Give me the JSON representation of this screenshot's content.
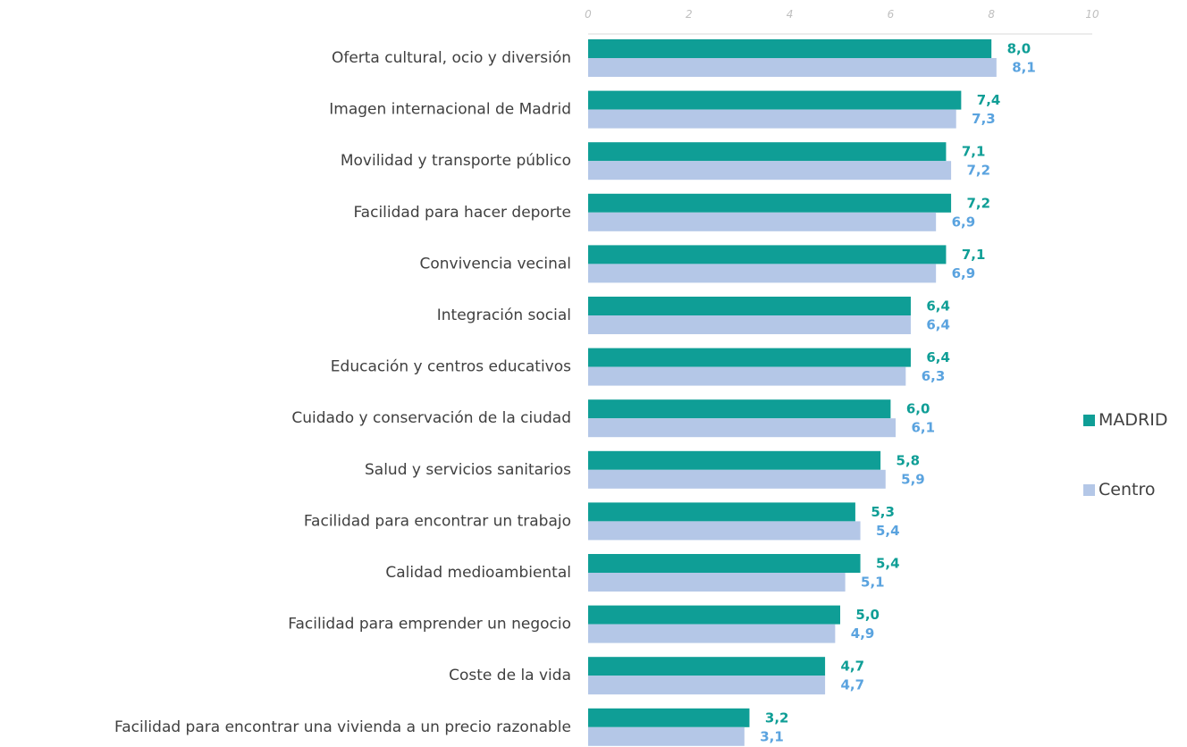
{
  "colors": {
    "madrid_bar": "#0f9e96",
    "centro_bar": "#b4c7e7",
    "madrid_text": "#0f9e96",
    "centro_text": "#5aa3df",
    "axis_line": "#d9d9d9"
  },
  "chart_data": {
    "type": "bar",
    "orientation": "horizontal",
    "title": "",
    "xlabel": "",
    "ylabel": "",
    "xlim": [
      0,
      10
    ],
    "x_ticks": [
      "0",
      "2",
      "4",
      "6",
      "8",
      "10"
    ],
    "x_axis_position": "top",
    "grid": false,
    "legend_position": "right",
    "categories": [
      "Oferta cultural, ocio y diversión",
      "Imagen internacional de Madrid",
      "Movilidad y transporte público",
      "Facilidad para hacer deporte",
      "Convivencia vecinal",
      "Integración social",
      "Educación y centros educativos",
      "Cuidado y conservación de la ciudad",
      "Salud y servicios sanitarios",
      "Facilidad para encontrar un trabajo",
      "Calidad medioambiental",
      "Facilidad para emprender un negocio",
      "Coste de la vida",
      "Facilidad para encontrar una vivienda a un precio razonable"
    ],
    "series": [
      {
        "name": "MADRID",
        "values": [
          8.0,
          7.4,
          7.1,
          7.2,
          7.1,
          6.4,
          6.4,
          6.0,
          5.8,
          5.3,
          5.4,
          5.0,
          4.7,
          3.2
        ],
        "labels": [
          "8,0",
          "7,4",
          "7,1",
          "7,2",
          "7,1",
          "6,4",
          "6,4",
          "6,0",
          "5,8",
          "5,3",
          "5,4",
          "5,0",
          "4,7",
          "3,2"
        ]
      },
      {
        "name": "Centro",
        "values": [
          8.1,
          7.3,
          7.2,
          6.9,
          6.9,
          6.4,
          6.3,
          6.1,
          5.9,
          5.4,
          5.1,
          4.9,
          4.7,
          3.1
        ],
        "labels": [
          "8,1",
          "7,3",
          "7,2",
          "6,9",
          "6,9",
          "6,4",
          "6,3",
          "6,1",
          "5,9",
          "5,4",
          "5,1",
          "4,9",
          "4,7",
          "3,1"
        ]
      }
    ]
  }
}
